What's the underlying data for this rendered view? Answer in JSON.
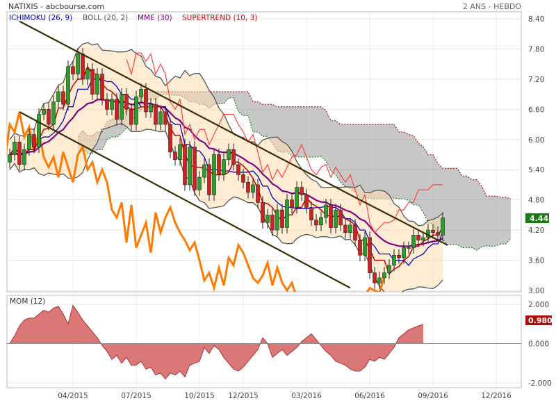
{
  "header": {
    "instrument": "NATIXIS - abcbourse.com",
    "period": "2 ANS - HEBDO"
  },
  "legend": [
    {
      "label": "ICHIMOKU (26, 9)",
      "color": "#0000cc"
    },
    {
      "label": "BOLL (20, 2)",
      "color": "#555555"
    },
    {
      "label": "MME (30)",
      "color": "#800080"
    },
    {
      "label": "SUPERTREND (10, 3)",
      "color": "#cc0000"
    }
  ],
  "mom_label": "MOM (12)",
  "last_price": {
    "label": "4.44",
    "value": 4.44,
    "color": "#1c7a14"
  },
  "last_mom": {
    "label": "0.980",
    "value": 0.98,
    "color": "#b01010"
  },
  "colors": {
    "up": "#2aa02a",
    "down": "#d02020",
    "orange": "#ff7a00",
    "boll": "#555555",
    "ema": "#800080",
    "tenkan": "#0000cc",
    "kijun": "#cc0000",
    "chikou": "#ff7a00",
    "cloudBull": "#b0b000",
    "cloud": "#999999",
    "mom": "#d46060"
  },
  "chart_data": [
    {
      "type": "candlestick",
      "title": "NATIXIS",
      "y_axis": {
        "min": 3.0,
        "max": 8.4,
        "ticks": [
          "8.40",
          "7.80",
          "7.20",
          "6.60",
          "6.00",
          "5.40",
          "4.80",
          "4.20",
          "3.60",
          "3.00"
        ]
      },
      "x_axis": {
        "ticks": [
          {
            "label": "04/2015",
            "week": 13
          },
          {
            "label": "07/2015",
            "week": 26
          },
          {
            "label": "10/2015",
            "week": 39
          },
          {
            "label": "12/2015",
            "week": 48
          },
          {
            "label": "03/2016",
            "week": 61
          },
          {
            "label": "06/2016",
            "week": 74
          },
          {
            "label": "09/2016",
            "week": 87
          },
          {
            "label": "12/2016",
            "week": 100
          }
        ]
      },
      "grid": true,
      "closes": [
        5.7,
        5.95,
        5.5,
        5.8,
        6.1,
        5.85,
        6.5,
        6.6,
        6.3,
        6.75,
        6.95,
        6.7,
        7.45,
        7.3,
        7.7,
        7.2,
        7.4,
        6.9,
        7.3,
        6.8,
        6.6,
        6.8,
        6.4,
        6.9,
        6.6,
        6.3,
        6.85,
        7.0,
        6.55,
        6.7,
        6.3,
        6.55,
        6.3,
        5.75,
        5.6,
        5.9,
        5.1,
        5.85,
        5.0,
        5.25,
        5.5,
        4.9,
        5.7,
        5.3,
        5.6,
        5.8,
        5.5,
        5.3,
        5.15,
        4.95,
        5.1,
        4.75,
        4.35,
        4.5,
        4.2,
        4.6,
        4.25,
        4.8,
        4.65,
        5.05,
        4.9,
        4.65,
        4.4,
        4.3,
        4.45,
        4.7,
        4.25,
        4.6,
        4.3,
        4.15,
        4.3,
        4.0,
        3.7,
        4.05,
        3.35,
        3.15,
        3.25,
        3.35,
        3.5,
        3.7,
        3.65,
        3.85,
        3.85,
        4.1,
        4.0,
        4.05,
        4.2,
        4.15,
        4.1,
        4.44
      ],
      "supertrend_top": 7.72,
      "boll_upper_peak": 7.82,
      "trend_channel": {
        "upper": [
          [
            2,
            8.35
          ],
          [
            70,
            4.9
          ],
          [
            90,
            3.9
          ]
        ],
        "lower": [
          [
            2,
            6.55
          ],
          [
            70,
            3.05
          ]
        ]
      }
    },
    {
      "type": "area",
      "title": "MOM (12)",
      "y_axis": {
        "min": -2.0,
        "max": 2.0,
        "ticks": [
          "2.000",
          "0.000",
          "-2.000"
        ]
      },
      "values": [
        0.0,
        0.4,
        0.9,
        1.2,
        1.3,
        1.3,
        1.5,
        1.7,
        1.6,
        1.8,
        1.9,
        1.5,
        1.0,
        1.95,
        1.6,
        1.2,
        0.9,
        0.6,
        0.3,
        -0.1,
        -0.4,
        -0.8,
        -0.6,
        -1.0,
        -0.7,
        -1.1,
        -1.1,
        -0.9,
        -1.3,
        -1.2,
        -1.6,
        -1.5,
        -1.8,
        -1.5,
        -1.6,
        -1.4,
        -1.7,
        -1.1,
        -1.0,
        -0.9,
        -0.2,
        -0.5,
        -0.1,
        -0.3,
        -0.7,
        -1.0,
        -1.3,
        -1.4,
        -1.2,
        -0.9,
        -0.6,
        -0.3,
        0.3,
        0.0,
        -0.7,
        -0.5,
        -0.3,
        -0.6,
        -0.4,
        -0.2,
        0.1,
        0.3,
        0.5,
        0.2,
        -0.1,
        -0.4,
        -0.6,
        -0.9,
        -1.0,
        -1.1,
        -1.3,
        -1.4,
        -1.4,
        -1.2,
        -0.8,
        -0.9,
        -0.7,
        -0.8,
        -0.5,
        -0.2,
        0.3,
        0.5,
        0.7,
        0.8,
        0.9,
        0.98
      ]
    }
  ]
}
